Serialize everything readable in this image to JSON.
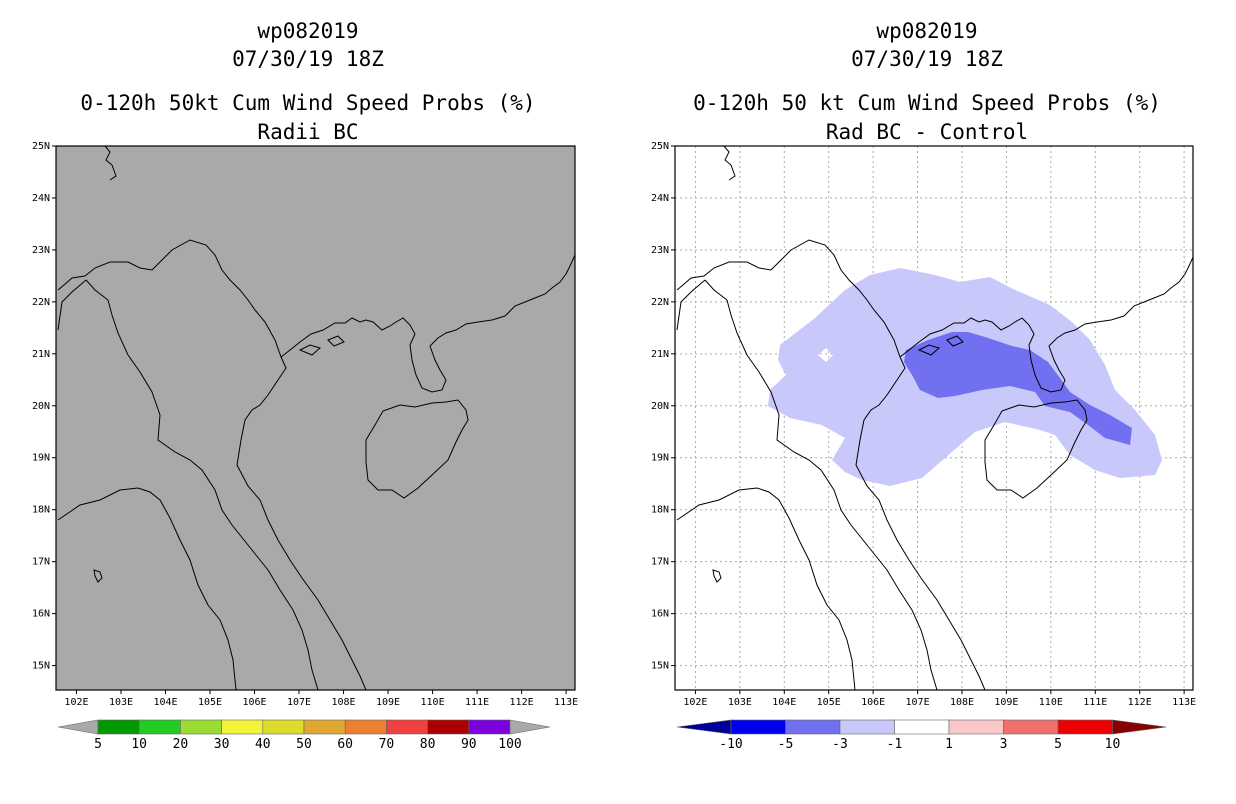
{
  "left_panel": {
    "title_line1": "wp082019",
    "title_line2": "07/30/19 18Z",
    "title_line3": "0-120h 50kt Cum Wind Speed Probs (%)",
    "title_line4": "Radii BC",
    "background_color": "#a9a9a9",
    "colorbar": {
      "colors": [
        "#a9a9a9",
        "#009900",
        "#22cc22",
        "#99dd33",
        "#f3f33a",
        "#dcdc2d",
        "#e0a730",
        "#ec8030",
        "#f04040",
        "#aa0000",
        "#7a00dd",
        "#a9a9a9"
      ],
      "labels": [
        "5",
        "10",
        "20",
        "30",
        "40",
        "50",
        "60",
        "70",
        "80",
        "90",
        "100"
      ]
    }
  },
  "right_panel": {
    "title_line1": "wp082019",
    "title_line2": "07/30/19 18Z",
    "title_line3": "0-120h 50 kt Cum Wind Speed Probs (%)",
    "title_line4": "Rad BC - Control",
    "shade_colors": {
      "light": "#c8c8fa",
      "medium": "#7070f0"
    },
    "colorbar": {
      "colors": [
        "#000099",
        "#0000ee",
        "#7070f0",
        "#c8c8fa",
        "#ffffff",
        "#fac8c8",
        "#f07070",
        "#ee0000",
        "#880000"
      ],
      "labels": [
        "-10",
        "-5",
        "-3",
        "-1",
        "1",
        "3",
        "5",
        "10"
      ]
    }
  },
  "axes": {
    "lat_labels": [
      "25N",
      "24N",
      "23N",
      "22N",
      "21N",
      "20N",
      "19N",
      "18N",
      "17N",
      "16N",
      "15N"
    ],
    "lon_labels": [
      "102E",
      "103E",
      "104E",
      "105E",
      "106E",
      "107E",
      "108E",
      "109E",
      "110E",
      "111E",
      "112E",
      "113E"
    ]
  }
}
